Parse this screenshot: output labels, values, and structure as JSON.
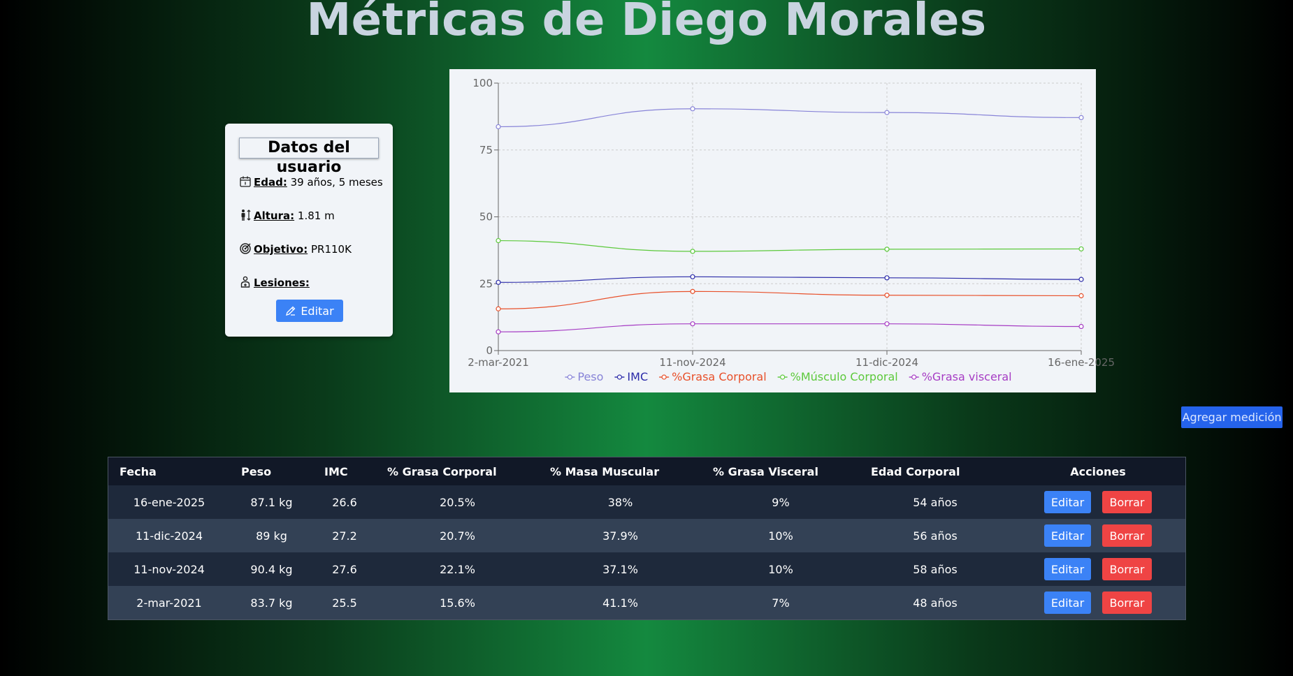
{
  "page": {
    "title": "Métricas de Diego Morales"
  },
  "user_card": {
    "title": "Datos del usuario",
    "age_label": "Edad:",
    "age_value": "39 años, 5 meses",
    "height_label": "Altura:",
    "height_value": "1.81 m",
    "goal_label": "Objetivo:",
    "goal_value": "PR110K",
    "injuries_label": "Lesiones:",
    "injuries_value": "",
    "edit_label": "Editar"
  },
  "add_button_label": "Agregar medición",
  "table": {
    "headers": [
      "Fecha",
      "Peso",
      "IMC",
      "% Grasa Corporal",
      "% Masa Muscular",
      "% Grasa Visceral",
      "Edad Corporal",
      "Acciones"
    ],
    "edit_label": "Editar",
    "delete_label": "Borrar",
    "rows": [
      [
        "16-ene-2025",
        "87.1 kg",
        "26.6",
        "20.5%",
        "38%",
        "9%",
        "54 años"
      ],
      [
        "11-dic-2024",
        "89 kg",
        "27.2",
        "20.7%",
        "37.9%",
        "10%",
        "56 años"
      ],
      [
        "11-nov-2024",
        "90.4 kg",
        "27.6",
        "22.1%",
        "37.1%",
        "10%",
        "58 años"
      ],
      [
        "2-mar-2021",
        "83.7 kg",
        "25.5",
        "15.6%",
        "41.1%",
        "7%",
        "48 años"
      ]
    ]
  },
  "chart_data": {
    "type": "line",
    "title": "",
    "xlabel": "",
    "ylabel": "",
    "categories": [
      "2-mar-2021",
      "11-nov-2024",
      "11-dic-2024",
      "16-ene-2025"
    ],
    "ylim": [
      0,
      100
    ],
    "yticks": [
      "0",
      "25",
      "50",
      "75",
      "100"
    ],
    "grid": true,
    "legend": "bottom",
    "series": [
      {
        "name": "Peso",
        "color": "#8884d8",
        "values": [
          83.7,
          90.4,
          89,
          87.1
        ]
      },
      {
        "name": "IMC",
        "color": "#2a2aa8",
        "values": [
          25.5,
          27.6,
          27.2,
          26.6
        ]
      },
      {
        "name": "%Grasa Corporal",
        "color": "#e8502a",
        "values": [
          15.6,
          22.1,
          20.7,
          20.5
        ]
      },
      {
        "name": "%Músculo Corporal",
        "color": "#5cc93b",
        "values": [
          41.1,
          37.1,
          37.9,
          38
        ]
      },
      {
        "name": "%Grasa visceral",
        "color": "#a63cc4",
        "values": [
          7,
          10,
          10,
          9
        ]
      }
    ]
  }
}
